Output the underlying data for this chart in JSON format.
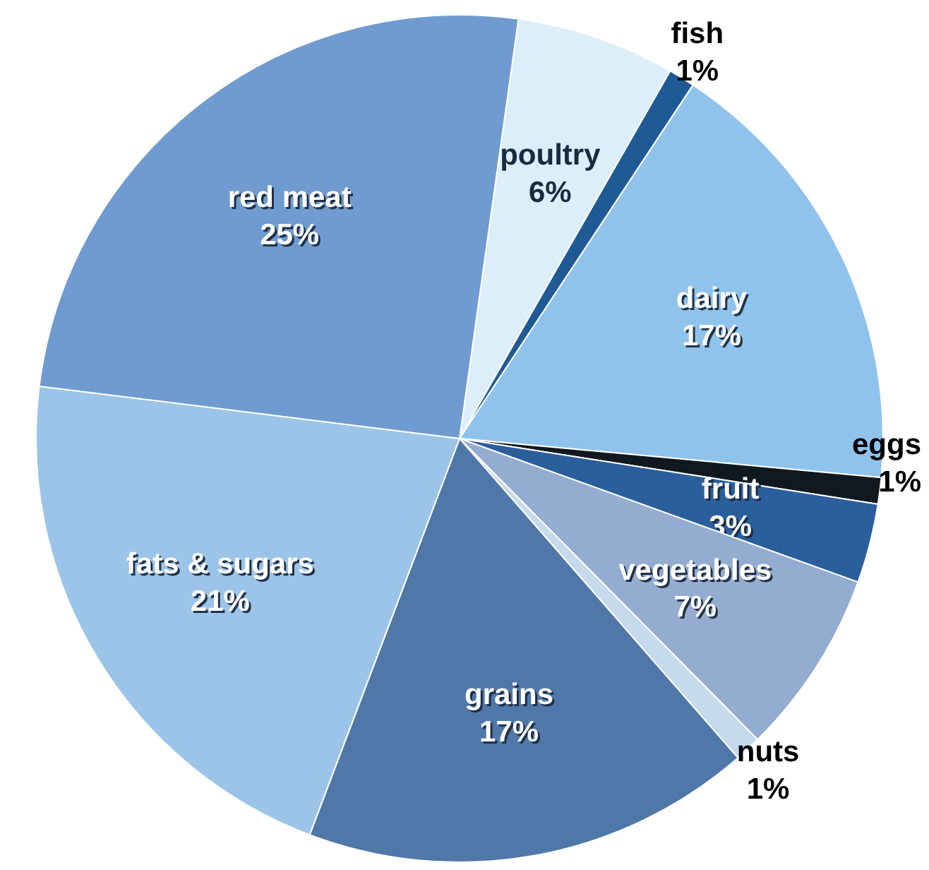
{
  "chart_data": {
    "type": "pie",
    "categories": [
      "poultry",
      "fish",
      "dairy",
      "eggs",
      "fruit",
      "vegetables",
      "nuts",
      "grains",
      "fats & sugars",
      "red meat"
    ],
    "values": [
      6,
      1,
      17,
      1,
      3,
      7,
      1,
      17,
      21,
      25
    ],
    "value_labels": [
      "6%",
      "1%",
      "17%",
      "1%",
      "3%",
      "7%",
      "1%",
      "17%",
      "21%",
      "25%"
    ],
    "colors": [
      "#dceefa",
      "#1f5a96",
      "#8fc3ec",
      "#111820",
      "#2b5f9c",
      "#93acd0",
      "#c5daec",
      "#4f77a8",
      "#9cc4e8",
      "#6f9bd0"
    ]
  }
}
